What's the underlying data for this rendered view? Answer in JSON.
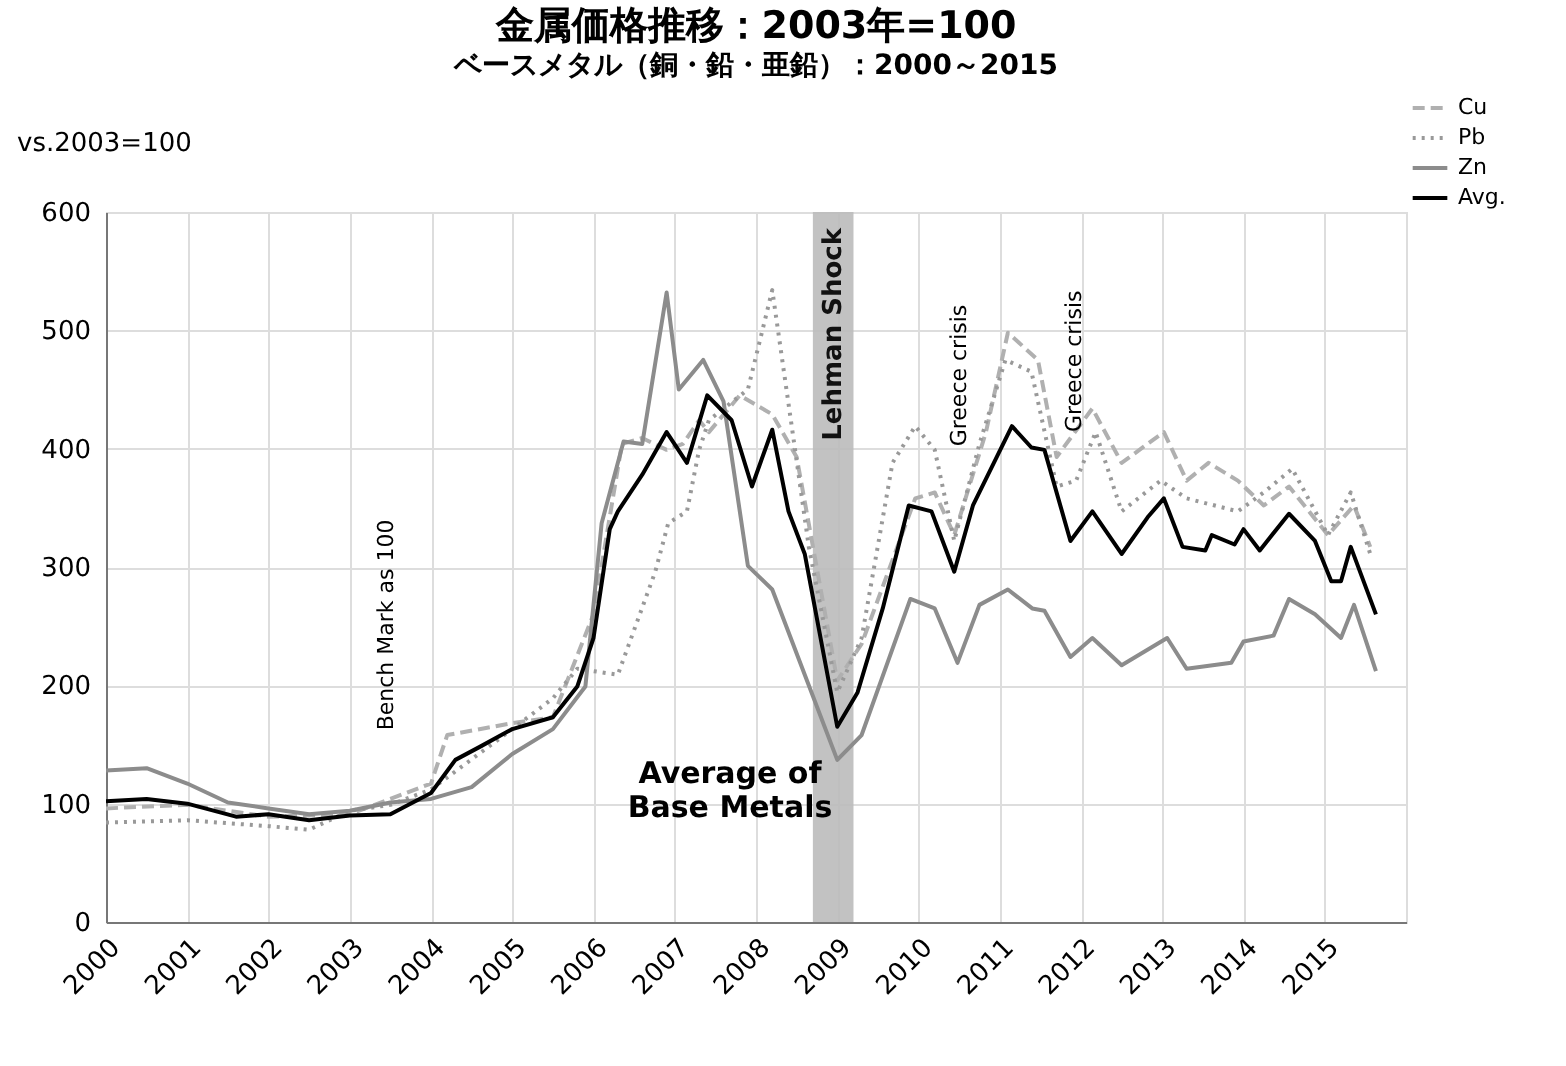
{
  "chart_data": {
    "type": "line",
    "title": "金属価格推移：2003年=100",
    "subtitle": "ベースメタル（銅・鉛・亜鉛）：2000～2015",
    "ylabel": "vs.2003=100",
    "xlim": [
      2000,
      2016
    ],
    "xticks": [
      2000,
      2001,
      2002,
      2003,
      2004,
      2005,
      2006,
      2007,
      2008,
      2009,
      2010,
      2011,
      2012,
      2013,
      2014,
      2015
    ],
    "ylim": [
      0,
      600
    ],
    "yticks": [
      0,
      100,
      200,
      300,
      400,
      500,
      600
    ],
    "grid": true,
    "legend": "top right",
    "series": [
      {
        "name": "Cu",
        "color": "#b0b0b0",
        "line_style": "dashed",
        "x": [
          2000,
          2001,
          2002,
          2003,
          2003.5,
          2004,
          2004.2,
          2005,
          2005.5,
          2006,
          2006.35,
          2006.6,
          2006.9,
          2007.1,
          2007.3,
          2007.42,
          2007.8,
          2008.2,
          2008.5,
          2009.0,
          2009.3,
          2009.96,
          2010.2,
          2010.44,
          2010.83,
          2011.1,
          2011.47,
          2011.7,
          2012.14,
          2012.5,
          2013.02,
          2013.3,
          2013.57,
          2013.93,
          2014.25,
          2014.56,
          2015.04,
          2015.36,
          2015.56
        ],
        "values": [
          96,
          99,
          89,
          91,
          104,
          117,
          158,
          168,
          173,
          260,
          404,
          409,
          399,
          404,
          424,
          414,
          445,
          429,
          393,
          204,
          235,
          358,
          363,
          327,
          414,
          498,
          475,
          393,
          434,
          388,
          414,
          373,
          388,
          373,
          352,
          368,
          327,
          352,
          317
        ]
      },
      {
        "name": "Pb",
        "color": "#999999",
        "line_style": "dotted",
        "x": [
          2000,
          2001,
          2002,
          2002.5,
          2003,
          2003.5,
          2004,
          2005,
          2005.5,
          2005.8,
          2006.3,
          2006.76,
          2006.92,
          2007.15,
          2007.3,
          2007.42,
          2007.9,
          2008.2,
          2008.45,
          2008.65,
          2009.0,
          2009.3,
          2009.68,
          2009.96,
          2010.2,
          2010.44,
          2010.75,
          2011.07,
          2011.39,
          2011.7,
          2011.94,
          2012.18,
          2012.5,
          2012.98,
          2013.3,
          2013.93,
          2014.25,
          2014.6,
          2015.04,
          2015.32,
          2015.56
        ],
        "values": [
          84,
          86,
          81,
          78,
          94,
          99,
          112,
          163,
          189,
          214,
          209,
          296,
          337,
          347,
          399,
          424,
          450,
          534,
          414,
          317,
          194,
          240,
          388,
          419,
          399,
          322,
          404,
          475,
          465,
          368,
          373,
          414,
          347,
          373,
          358,
          347,
          363,
          383,
          327,
          363,
          311
        ]
      },
      {
        "name": "Zn",
        "color": "#8c8c8c",
        "line_style": "solid",
        "x": [
          2000,
          2000.5,
          2001,
          2001.5,
          2002,
          2002.5,
          2003,
          2003.5,
          2004,
          2004.5,
          2005,
          2005.5,
          2005.9,
          2006.1,
          2006.37,
          2006.6,
          2006.9,
          2007.05,
          2007.35,
          2007.6,
          2007.9,
          2008.2,
          2008.6,
          2009.0,
          2009.3,
          2009.9,
          2010.2,
          2010.48,
          2010.75,
          2011.1,
          2011.4,
          2011.55,
          2011.87,
          2012.14,
          2012.5,
          2013.06,
          2013.3,
          2013.85,
          2014.0,
          2014.37,
          2014.56,
          2014.88,
          2015.2,
          2015.36,
          2015.63
        ],
        "values": [
          128,
          130,
          117,
          101,
          96,
          91,
          94,
          101,
          104,
          114,
          142,
          163,
          199,
          337,
          406,
          404,
          532,
          450,
          475,
          440,
          301,
          281,
          209,
          137,
          158,
          273,
          265,
          219,
          268,
          281,
          265,
          263,
          224,
          240,
          217,
          240,
          214,
          219,
          237,
          242,
          273,
          260,
          240,
          268,
          212
        ]
      },
      {
        "name": "Avg.",
        "color": "#000000",
        "line_style": "solid",
        "x": [
          2000,
          2000.5,
          2001,
          2001.6,
          2002,
          2002.5,
          2003,
          2003.5,
          2004,
          2004.3,
          2004.6,
          2005,
          2005.5,
          2005.8,
          2006.0,
          2006.2,
          2006.3,
          2006.6,
          2006.9,
          2007.15,
          2007.4,
          2007.7,
          2007.95,
          2008.2,
          2008.4,
          2008.6,
          2009.0,
          2009.25,
          2009.56,
          2009.88,
          2010.16,
          2010.44,
          2010.67,
          2011.15,
          2011.39,
          2011.55,
          2011.87,
          2012.14,
          2012.5,
          2012.82,
          2013.02,
          2013.25,
          2013.53,
          2013.61,
          2013.89,
          2014.0,
          2014.2,
          2014.56,
          2014.88,
          2015.08,
          2015.2,
          2015.32,
          2015.63
        ],
        "values": [
          102,
          104,
          100,
          89,
          91,
          86,
          90,
          91,
          109,
          137,
          148,
          163,
          173,
          199,
          240,
          332,
          347,
          378,
          414,
          388,
          445,
          424,
          368,
          416,
          347,
          311,
          165,
          194,
          265,
          352,
          347,
          296,
          352,
          419,
          401,
          399,
          322,
          347,
          311,
          342,
          358,
          317,
          314,
          327,
          319,
          332,
          314,
          345,
          322,
          288,
          288,
          317,
          260
        ]
      }
    ],
    "bands": [
      {
        "axis": "x",
        "from": 2008.7,
        "to": 2009.2,
        "label": "Lehman Shock",
        "color": "#bbbbbb"
      }
    ],
    "annotations": [
      "Bench Mark as 100",
      "Average of\nBase Metals",
      "Greece crisis",
      "Greece crisis"
    ]
  }
}
